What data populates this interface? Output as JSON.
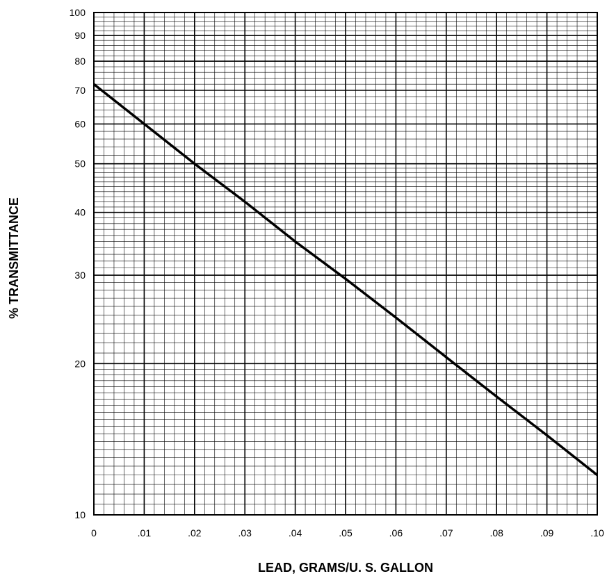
{
  "chart_data": {
    "type": "line",
    "title": "",
    "xlabel": "LEAD, GRAMS/U. S. GALLON",
    "ylabel": "% TRANSMITTANCE",
    "xlim": [
      0,
      0.1
    ],
    "ylim": [
      10,
      100
    ],
    "y_scale": "log",
    "grid": true,
    "legend": "none",
    "x_tick_labels": [
      "0",
      ".01",
      ".02",
      ".03",
      ".04",
      ".05",
      ".06",
      ".07",
      ".08",
      ".09",
      ".10"
    ],
    "x_ticks": [
      0,
      0.01,
      0.02,
      0.03,
      0.04,
      0.05,
      0.06,
      0.07,
      0.08,
      0.09,
      0.1
    ],
    "y_tick_labels": [
      "10",
      "20",
      "30",
      "40",
      "50",
      "60",
      "70",
      "80",
      "90",
      "100"
    ],
    "y_ticks": [
      10,
      20,
      30,
      40,
      50,
      60,
      70,
      80,
      90,
      100
    ],
    "series": [
      {
        "x": [
          0,
          0.01,
          0.02,
          0.03,
          0.04,
          0.05,
          0.06,
          0.07,
          0.08,
          0.09,
          0.1
        ],
        "y": [
          72,
          60,
          50,
          42,
          35,
          29.5,
          24.7,
          20.6,
          17.2,
          14.4,
          12
        ]
      }
    ],
    "colors": {
      "line": "#000000",
      "grid": "#000000"
    }
  }
}
